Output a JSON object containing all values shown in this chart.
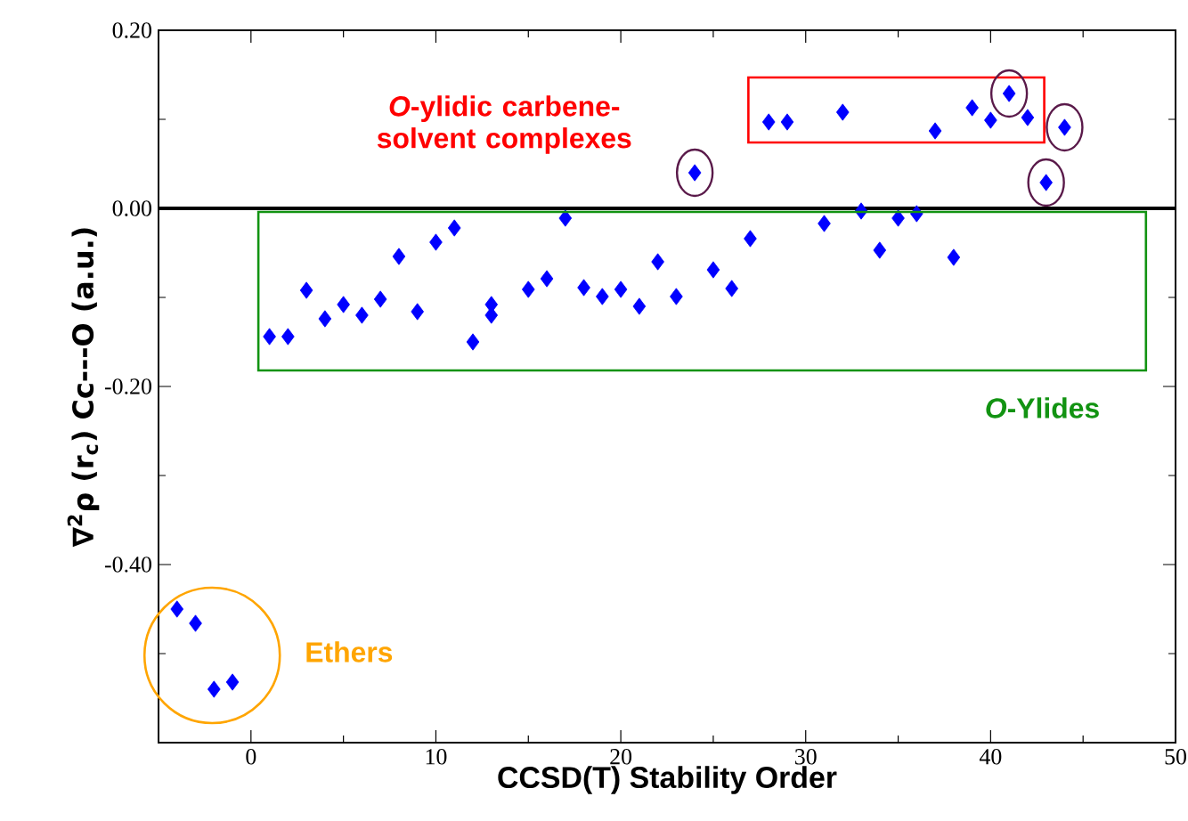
{
  "chart_data": {
    "type": "scatter",
    "xlabel": "CCSD(T) Stability Order",
    "ylabel": "∇$^{2}$ρ (r$_{c}$) Cc---O (a.u.)",
    "xlim": [
      -5,
      50
    ],
    "ylim": [
      -0.6,
      0.2
    ],
    "xticks": [
      0,
      {
        "value": 5,
        "label": null
      },
      10,
      {
        "value": 15,
        "label": null
      },
      20,
      {
        "value": 25,
        "label": null
      },
      30,
      {
        "value": 35,
        "label": null
      },
      40,
      {
        "value": 45,
        "label": null
      },
      50
    ],
    "yticks": [
      {
        "value": 0.2,
        "label": "0.20"
      },
      {
        "value": 0.1,
        "label": null
      },
      {
        "value": 0,
        "label": "0.00"
      },
      {
        "value": -0.1,
        "label": null
      },
      {
        "value": -0.2,
        "label": "-0.20"
      },
      {
        "value": -0.3,
        "label": null
      },
      {
        "value": -0.4,
        "label": "-0.40"
      },
      {
        "value": -0.5,
        "label": null
      }
    ],
    "marker": "diamond",
    "color": "#0000ff",
    "x": [
      -4,
      -3,
      -2,
      -1,
      1,
      2,
      3,
      4,
      5,
      6,
      7,
      8,
      9,
      10,
      11,
      12,
      13,
      13,
      15,
      16,
      17,
      18,
      19,
      20,
      21,
      22,
      23,
      25,
      26,
      27,
      31,
      33,
      34,
      35,
      36,
      38,
      24,
      28,
      29,
      32,
      37,
      39,
      40,
      41,
      42,
      43,
      44
    ],
    "values": [
      -0.45,
      -0.466,
      -0.54,
      -0.532,
      -0.144,
      -0.144,
      -0.092,
      -0.124,
      -0.108,
      -0.12,
      -0.102,
      -0.054,
      -0.116,
      -0.038,
      -0.022,
      -0.15,
      -0.108,
      -0.12,
      -0.091,
      -0.079,
      -0.011,
      -0.089,
      -0.099,
      -0.091,
      -0.11,
      -0.06,
      -0.099,
      -0.069,
      -0.09,
      -0.034,
      -0.017,
      -0.003,
      -0.047,
      -0.011,
      -0.006,
      -0.055,
      0.04,
      0.097,
      0.097,
      0.108,
      0.087,
      0.113,
      0.099,
      0.129,
      0.102,
      0.029,
      0.091
    ],
    "ref_lines": [
      {
        "axis": "y",
        "value": 0,
        "color": "#000000"
      }
    ],
    "annotations": [
      "*O*-ylidic carbene-solvent complexes",
      "*O*-Ylides",
      "Ethers"
    ]
  }
}
